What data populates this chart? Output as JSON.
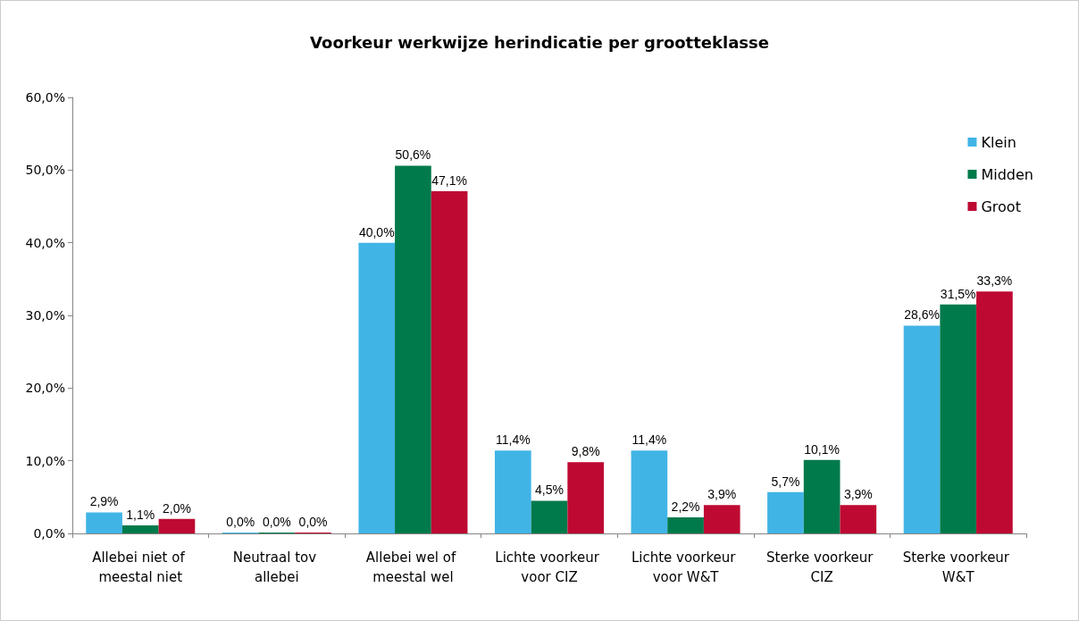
{
  "chart_data": {
    "type": "bar",
    "title": "Voorkeur werkwijze herindicatie per grootteklasse",
    "categories": [
      "Allebei niet of meestal niet",
      "Neutraal tov allebei",
      "Allebei wel of meestal wel",
      "Lichte voorkeur voor CIZ",
      "Lichte voorkeur voor W&T",
      "Sterke voorkeur CIZ",
      "Sterke voorkeur W&T"
    ],
    "series": [
      {
        "name": "Klein",
        "color": "#41b4e6",
        "values": [
          2.9,
          0.0,
          40.0,
          11.4,
          11.4,
          5.7,
          28.6
        ],
        "value_labels": [
          "2,9%",
          "0,0%",
          "40,0%",
          "11,4%",
          "11,4%",
          "5,7%",
          "28,6%"
        ]
      },
      {
        "name": "Midden",
        "color": "#007a4b",
        "values": [
          1.1,
          0.0,
          50.6,
          4.5,
          2.2,
          10.1,
          31.5
        ],
        "value_labels": [
          "1,1%",
          "0,0%",
          "50,6%",
          "4,5%",
          "2,2%",
          "10,1%",
          "31,5%"
        ]
      },
      {
        "name": "Groot",
        "color": "#be0a32",
        "values": [
          2.0,
          0.0,
          47.1,
          9.8,
          3.9,
          3.9,
          33.3
        ],
        "value_labels": [
          "2,0%",
          "0,0%",
          "47,1%",
          "9,8%",
          "3,9%",
          "3,9%",
          "33,3%"
        ]
      }
    ],
    "ylim": [
      0,
      60
    ],
    "yticks": [
      {
        "value": 0,
        "label": "0,0%"
      },
      {
        "value": 10,
        "label": "10,0%"
      },
      {
        "value": 20,
        "label": "20,0%"
      },
      {
        "value": 30,
        "label": "30,0%"
      },
      {
        "value": 40,
        "label": "40,0%"
      },
      {
        "value": 50,
        "label": "50,0%"
      },
      {
        "value": 60,
        "label": "60,0%"
      }
    ],
    "grid": false,
    "legend": "top right"
  }
}
